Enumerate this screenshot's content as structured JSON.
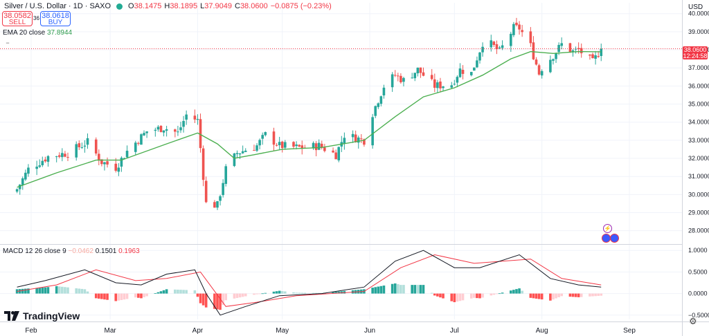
{
  "header": {
    "symbol": "Silver / U.S. Dollar · 1D · SAXO",
    "ohlc": [
      {
        "k": "O",
        "v": "38.1475"
      },
      {
        "k": "H",
        "v": "38.1895"
      },
      {
        "k": "L",
        "v": "37.9049"
      },
      {
        "k": "C",
        "v": "38.0600"
      },
      {
        "k": "",
        "v": "−0.0875 (−0.23%)"
      }
    ],
    "sell_price": "38.0582",
    "sell_label": "SELL",
    "spread": "36",
    "buy_price": "38.0618",
    "buy_label": "BUY",
    "ema_label": "EMA 20 close",
    "ema_value": "37.8944",
    "macd_label": "MACD 12 26 close 9",
    "macd_hist": "−0.0462",
    "macd_value": "0.1501",
    "macd_signal": "0.1963",
    "currency": "USD",
    "last_price": "38.0600",
    "countdown": "12:24:58",
    "brand": "TradingView"
  },
  "colors": {
    "up": "#26a69a",
    "down": "#ef5350",
    "ema": "#4caf50",
    "macd": "#131722",
    "signal": "#f23645",
    "hist_up_strong": "#26a69a",
    "hist_up_weak": "#b2dfdb",
    "hist_down_strong": "#ff5252",
    "hist_down_weak": "#ffcdd2",
    "last_price": "#f23645"
  },
  "icons": [
    "eye-toggle-icon",
    "tradingview-logo-icon",
    "settings-gear-icon",
    "event-bolt-icon",
    "us-flag-icon"
  ],
  "chart_data": [
    {
      "type": "candlestick",
      "title": "Silver / U.S. Dollar · 1D · SAXO",
      "x_tick_labels": [
        "Feb",
        "Mar",
        "Apr",
        "May",
        "Jun",
        "Jul",
        "Aug",
        "Sep"
      ],
      "y_tick_labels": [
        "28.0000",
        "29.0000",
        "30.0000",
        "31.0000",
        "32.0000",
        "33.0000",
        "34.0000",
        "35.0000",
        "36.0000",
        "37.0000",
        "38.0000",
        "39.0000",
        "40.0000"
      ],
      "ylim": [
        27.3,
        40.6
      ],
      "grid": true,
      "last_close": 38.06,
      "keypoints": [
        {
          "date": "2025-01-27",
          "close": 30.3
        },
        {
          "date": "2025-01-31",
          "close": 31.4
        },
        {
          "date": "2025-02-07",
          "close": 32.1
        },
        {
          "date": "2025-02-14",
          "close": 32.3
        },
        {
          "date": "2025-02-21",
          "close": 32.9
        },
        {
          "date": "2025-02-26",
          "close": 31.8
        },
        {
          "date": "2025-03-03",
          "close": 31.5
        },
        {
          "date": "2025-03-07",
          "close": 32.4
        },
        {
          "date": "2025-03-14",
          "close": 33.5
        },
        {
          "date": "2025-03-20",
          "close": 33.7
        },
        {
          "date": "2025-03-25",
          "close": 33.4
        },
        {
          "date": "2025-03-28",
          "close": 34.4
        },
        {
          "date": "2025-04-01",
          "close": 34.1
        },
        {
          "date": "2025-04-04",
          "close": 29.5
        },
        {
          "date": "2025-04-08",
          "close": 29.4
        },
        {
          "date": "2025-04-11",
          "close": 31.4
        },
        {
          "date": "2025-04-15",
          "close": 32.3
        },
        {
          "date": "2025-04-22",
          "close": 32.7
        },
        {
          "date": "2025-04-25",
          "close": 33.3
        },
        {
          "date": "2025-04-30",
          "close": 32.7
        },
        {
          "date": "2025-05-06",
          "close": 32.6
        },
        {
          "date": "2025-05-09",
          "close": 32.6
        },
        {
          "date": "2025-05-14",
          "close": 32.7
        },
        {
          "date": "2025-05-20",
          "close": 32.2
        },
        {
          "date": "2025-05-23",
          "close": 33.3
        },
        {
          "date": "2025-05-30",
          "close": 33.0
        },
        {
          "date": "2025-06-02",
          "close": 34.5
        },
        {
          "date": "2025-06-06",
          "close": 36.0
        },
        {
          "date": "2025-06-10",
          "close": 36.6
        },
        {
          "date": "2025-06-13",
          "close": 36.3
        },
        {
          "date": "2025-06-18",
          "close": 36.9
        },
        {
          "date": "2025-06-24",
          "close": 36.0
        },
        {
          "date": "2025-06-30",
          "close": 36.1
        },
        {
          "date": "2025-07-03",
          "close": 36.9
        },
        {
          "date": "2025-07-07",
          "close": 36.7
        },
        {
          "date": "2025-07-11",
          "close": 38.4
        },
        {
          "date": "2025-07-14",
          "close": 38.3
        },
        {
          "date": "2025-07-17",
          "close": 37.9
        },
        {
          "date": "2025-07-22",
          "close": 39.2
        },
        {
          "date": "2025-07-24",
          "close": 39.2
        },
        {
          "date": "2025-07-28",
          "close": 38.2
        },
        {
          "date": "2025-07-31",
          "close": 36.7
        },
        {
          "date": "2025-08-01",
          "close": 37.0
        },
        {
          "date": "2025-08-05",
          "close": 37.7
        },
        {
          "date": "2025-08-08",
          "close": 38.3
        },
        {
          "date": "2025-08-12",
          "close": 37.9
        },
        {
          "date": "2025-08-14",
          "close": 38.0
        },
        {
          "date": "2025-08-19",
          "close": 37.3
        },
        {
          "date": "2025-08-22",
          "close": 38.06
        }
      ],
      "ema20_close": [
        {
          "date": "2025-01-27",
          "value": 30.4
        },
        {
          "date": "2025-02-10",
          "value": 31.2
        },
        {
          "date": "2025-02-24",
          "value": 31.9
        },
        {
          "date": "2025-03-05",
          "value": 31.9
        },
        {
          "date": "2025-03-21",
          "value": 32.8
        },
        {
          "date": "2025-04-01",
          "value": 33.4
        },
        {
          "date": "2025-04-08",
          "value": 32.8
        },
        {
          "date": "2025-04-14",
          "value": 32.0
        },
        {
          "date": "2025-04-21",
          "value": 32.2
        },
        {
          "date": "2025-05-01",
          "value": 32.5
        },
        {
          "date": "2025-05-15",
          "value": 32.6
        },
        {
          "date": "2025-05-30",
          "value": 33.0
        },
        {
          "date": "2025-06-10",
          "value": 34.3
        },
        {
          "date": "2025-06-20",
          "value": 35.4
        },
        {
          "date": "2025-07-01",
          "value": 35.9
        },
        {
          "date": "2025-07-11",
          "value": 36.6
        },
        {
          "date": "2025-07-21",
          "value": 37.5
        },
        {
          "date": "2025-07-28",
          "value": 37.9
        },
        {
          "date": "2025-08-05",
          "value": 37.8
        },
        {
          "date": "2025-08-14",
          "value": 37.9
        },
        {
          "date": "2025-08-22",
          "value": 37.89
        }
      ]
    },
    {
      "type": "line",
      "title": "MACD 12 26 close 9",
      "y_tick_labels": [
        "1.0000",
        "0.5000",
        "0.0000",
        "−0.5000"
      ],
      "ylim": [
        -0.6,
        1.1
      ],
      "grid": true,
      "series": [
        {
          "name": "MACD",
          "points": [
            {
              "date": "2025-01-27",
              "value": 0.15
            },
            {
              "date": "2025-02-06",
              "value": 0.3
            },
            {
              "date": "2025-02-20",
              "value": 0.55
            },
            {
              "date": "2025-03-03",
              "value": 0.25
            },
            {
              "date": "2025-03-12",
              "value": 0.2
            },
            {
              "date": "2025-03-21",
              "value": 0.45
            },
            {
              "date": "2025-03-31",
              "value": 0.55
            },
            {
              "date": "2025-04-04",
              "value": 0.0
            },
            {
              "date": "2025-04-09",
              "value": -0.5
            },
            {
              "date": "2025-04-18",
              "value": -0.3
            },
            {
              "date": "2025-04-30",
              "value": -0.05
            },
            {
              "date": "2025-05-15",
              "value": 0.0
            },
            {
              "date": "2025-05-30",
              "value": 0.15
            },
            {
              "date": "2025-06-10",
              "value": 0.75
            },
            {
              "date": "2025-06-20",
              "value": 1.0
            },
            {
              "date": "2025-07-01",
              "value": 0.6
            },
            {
              "date": "2025-07-10",
              "value": 0.6
            },
            {
              "date": "2025-07-24",
              "value": 0.9
            },
            {
              "date": "2025-08-04",
              "value": 0.35
            },
            {
              "date": "2025-08-14",
              "value": 0.2
            },
            {
              "date": "2025-08-22",
              "value": 0.15
            }
          ]
        },
        {
          "name": "Signal",
          "points": [
            {
              "date": "2025-01-27",
              "value": 0.05
            },
            {
              "date": "2025-02-10",
              "value": 0.2
            },
            {
              "date": "2025-02-24",
              "value": 0.55
            },
            {
              "date": "2025-03-10",
              "value": 0.3
            },
            {
              "date": "2025-03-21",
              "value": 0.35
            },
            {
              "date": "2025-04-02",
              "value": 0.5
            },
            {
              "date": "2025-04-11",
              "value": -0.3
            },
            {
              "date": "2025-04-22",
              "value": -0.2
            },
            {
              "date": "2025-05-06",
              "value": -0.05
            },
            {
              "date": "2025-05-30",
              "value": 0.05
            },
            {
              "date": "2025-06-12",
              "value": 0.6
            },
            {
              "date": "2025-06-24",
              "value": 0.9
            },
            {
              "date": "2025-07-08",
              "value": 0.7
            },
            {
              "date": "2025-07-28",
              "value": 0.8
            },
            {
              "date": "2025-08-08",
              "value": 0.35
            },
            {
              "date": "2025-08-22",
              "value": 0.2
            }
          ]
        }
      ]
    }
  ]
}
